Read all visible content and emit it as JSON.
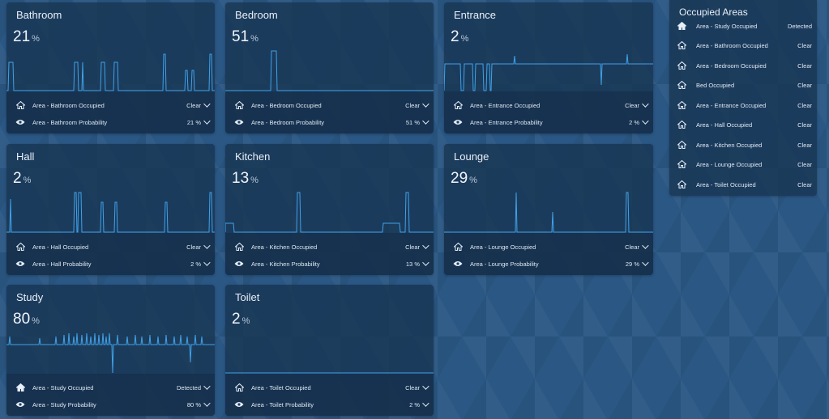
{
  "cards": [
    {
      "title": "Bathroom",
      "value": "21",
      "unit": "%",
      "occupied_label": "Area - Bathroom Occupied",
      "occupied_state": "Clear",
      "prob_label": "Area - Bathroom Probability",
      "prob_state": "21 %"
    },
    {
      "title": "Bedroom",
      "value": "51",
      "unit": "%",
      "occupied_label": "Area - Bedroom Occupied",
      "occupied_state": "Clear",
      "prob_label": "Area - Bedroom Probability",
      "prob_state": "51 %"
    },
    {
      "title": "Entrance",
      "value": "2",
      "unit": "%",
      "occupied_label": "Area - Entrance Occupied",
      "occupied_state": "Clear",
      "prob_label": "Area - Entrance Probability",
      "prob_state": "2 %"
    },
    {
      "title": "Hall",
      "value": "2",
      "unit": "%",
      "occupied_label": "Area - Hall Occupied",
      "occupied_state": "Clear",
      "prob_label": "Area - Hall Probability",
      "prob_state": "2 %"
    },
    {
      "title": "Kitchen",
      "value": "13",
      "unit": "%",
      "occupied_label": "Area - Kitchen Occupied",
      "occupied_state": "Clear",
      "prob_label": "Area - Kitchen Probability",
      "prob_state": "13 %"
    },
    {
      "title": "Lounge",
      "value": "29",
      "unit": "%",
      "occupied_label": "Area - Lounge Occupied",
      "occupied_state": "Clear",
      "prob_label": "Area - Lounge Probability",
      "prob_state": "29 %"
    },
    {
      "title": "Study",
      "value": "80",
      "unit": "%",
      "occupied_label": "Area - Study Occupied",
      "occupied_state": "Detected",
      "prob_label": "Area - Study Probability",
      "prob_state": "80 %"
    },
    {
      "title": "Toilet",
      "value": "2",
      "unit": "%",
      "occupied_label": "Area - Toilet Occupied",
      "occupied_state": "Clear",
      "prob_label": "Area - Toilet Probability",
      "prob_state": "2 %"
    }
  ],
  "occupied_areas": {
    "title": "Occupied Areas",
    "items": [
      {
        "label": "Area - Study Occupied",
        "state": "Detected"
      },
      {
        "label": "Area - Bathroom Occupied",
        "state": "Clear"
      },
      {
        "label": "Area - Bedroom Occupied",
        "state": "Clear"
      },
      {
        "label": "Bed Occupied",
        "state": "Clear"
      },
      {
        "label": "Area - Entrance Occupied",
        "state": "Clear"
      },
      {
        "label": "Area - Hall Occupied",
        "state": "Clear"
      },
      {
        "label": "Area - Kitchen Occupied",
        "state": "Clear"
      },
      {
        "label": "Area - Lounge Occupied",
        "state": "Clear"
      },
      {
        "label": "Area - Toilet Occupied",
        "state": "Clear"
      }
    ]
  },
  "icons": {
    "occupied": "home-icon",
    "probability": "eye-icon",
    "expand": "chevron-down-icon"
  },
  "colors": {
    "graph_line": "#3fa2e8",
    "card_bg": "#183654",
    "page_bg": "#2a5784"
  }
}
